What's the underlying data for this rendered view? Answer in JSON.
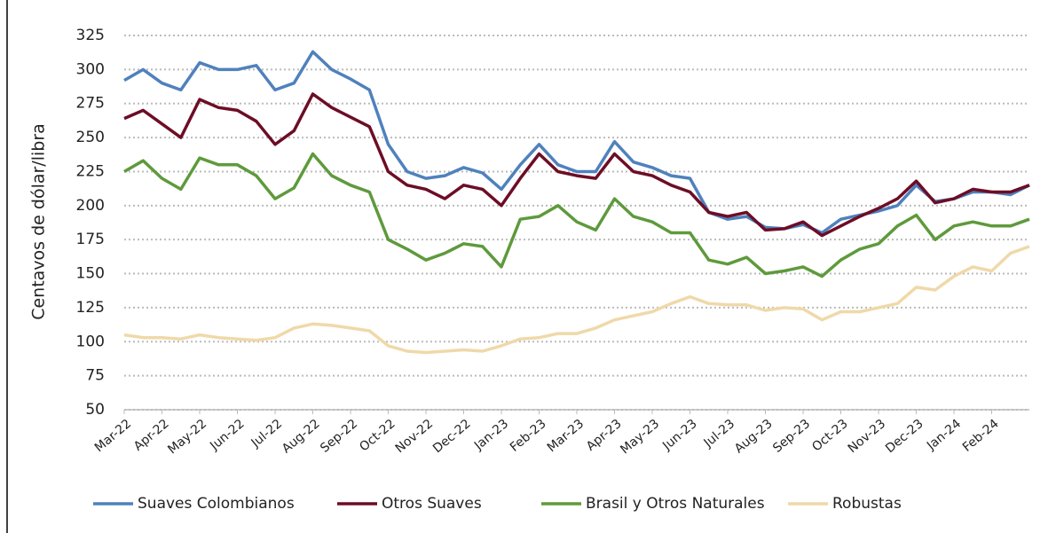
{
  "chart_data": {
    "type": "line",
    "y_label": "Centavos de dólar/libra",
    "categories": [
      "Mar-22",
      null,
      "Apr-22",
      null,
      "May-22",
      null,
      "Jun-22",
      null,
      "Jul-22",
      null,
      "Aug-22",
      null,
      "Sep-22",
      null,
      "Oct-22",
      null,
      "Nov-22",
      null,
      "Dec-22",
      null,
      "Jan-23",
      null,
      "Feb-23",
      null,
      "Mar-23",
      null,
      "Apr-23",
      null,
      "May-23",
      null,
      "Jun-23",
      null,
      "Jul-23",
      null,
      "Aug-23",
      null,
      "Sep-23",
      null,
      "Oct-23",
      null,
      "Nov-23",
      null,
      "Dec-23",
      null,
      "Jan-24",
      null,
      "Feb-24",
      null,
      null
    ],
    "series": [
      {
        "name": "Suaves Colombianos",
        "color": "#4f81bd",
        "values": [
          292,
          300,
          290,
          285,
          305,
          300,
          300,
          303,
          285,
          290,
          313,
          300,
          293,
          285,
          245,
          225,
          220,
          222,
          228,
          224,
          212,
          230,
          245,
          230,
          225,
          225,
          247,
          232,
          228,
          222,
          220,
          195,
          190,
          192,
          184,
          183,
          186,
          180,
          190,
          193,
          196,
          200,
          215,
          203,
          205,
          210,
          210,
          208,
          215
        ]
      },
      {
        "name": "Otros Suaves",
        "color": "#6d0d26",
        "values": [
          264,
          270,
          260,
          250,
          278,
          272,
          270,
          262,
          245,
          255,
          282,
          272,
          265,
          258,
          225,
          215,
          212,
          205,
          215,
          212,
          200,
          220,
          238,
          225,
          222,
          220,
          238,
          225,
          222,
          215,
          210,
          195,
          192,
          195,
          182,
          183,
          188,
          178,
          185,
          192,
          198,
          205,
          218,
          202,
          205,
          212,
          210,
          210,
          215
        ]
      },
      {
        "name": "Brasil y Otros Naturales",
        "color": "#5e9a3c",
        "values": [
          225,
          233,
          220,
          212,
          235,
          230,
          230,
          222,
          205,
          213,
          238,
          222,
          215,
          210,
          175,
          168,
          160,
          165,
          172,
          170,
          155,
          190,
          192,
          200,
          188,
          182,
          205,
          192,
          188,
          180,
          180,
          160,
          157,
          162,
          150,
          152,
          155,
          148,
          160,
          168,
          172,
          185,
          193,
          175,
          185,
          188,
          185,
          185,
          190
        ]
      },
      {
        "name": "Robustas",
        "color": "#efd9a9",
        "values": [
          105,
          103,
          103,
          102,
          105,
          103,
          102,
          101,
          103,
          110,
          113,
          112,
          110,
          108,
          97,
          93,
          92,
          93,
          94,
          93,
          97,
          102,
          103,
          106,
          106,
          110,
          116,
          119,
          122,
          128,
          133,
          128,
          127,
          127,
          123,
          125,
          124,
          116,
          122,
          122,
          125,
          128,
          140,
          138,
          148,
          155,
          152,
          165,
          170
        ]
      }
    ],
    "ylim": [
      50,
      325
    ],
    "yticks": [
      50,
      75,
      100,
      125,
      150,
      175,
      200,
      225,
      250,
      275,
      300,
      325
    ],
    "grid": true
  }
}
